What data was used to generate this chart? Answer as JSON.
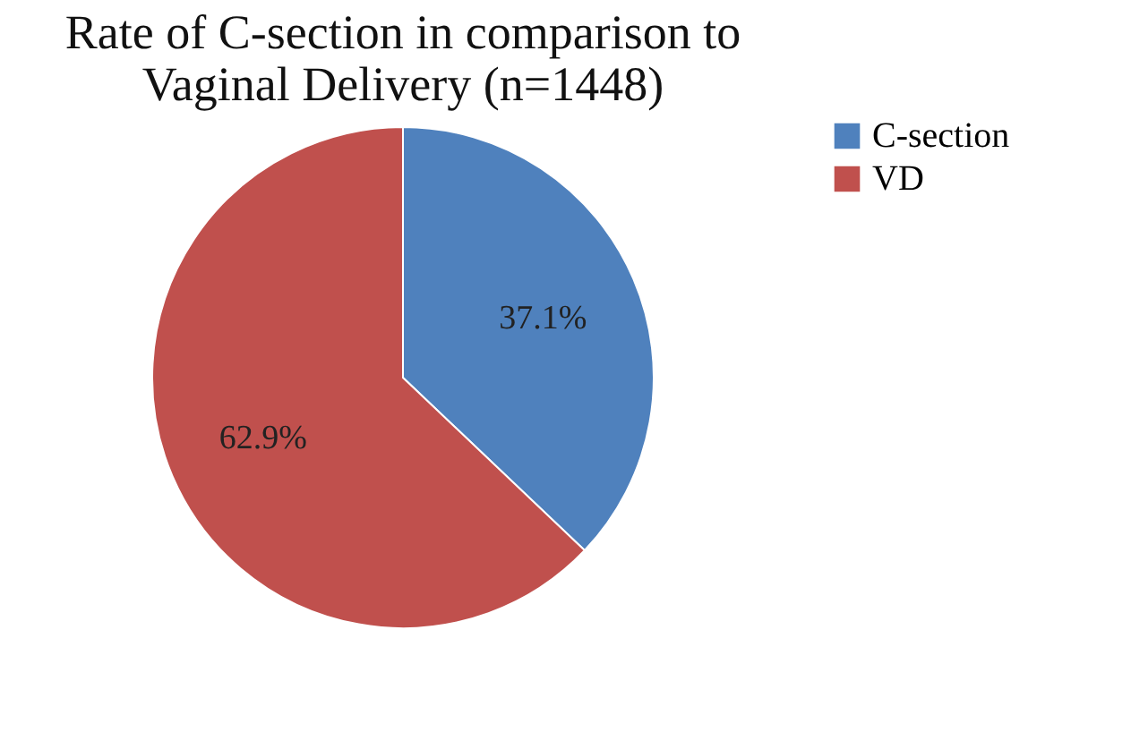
{
  "chart_data": {
    "type": "pie",
    "title": "Rate of C-section in comparison to Vaginal Delivery (n=1448)",
    "categories": [
      "C-section",
      "VD"
    ],
    "values": [
      37.1,
      62.9
    ],
    "colors": [
      "#4f81bd",
      "#c0504d"
    ],
    "value_labels": [
      "37.1%",
      "62.9%"
    ],
    "legend": "right"
  }
}
